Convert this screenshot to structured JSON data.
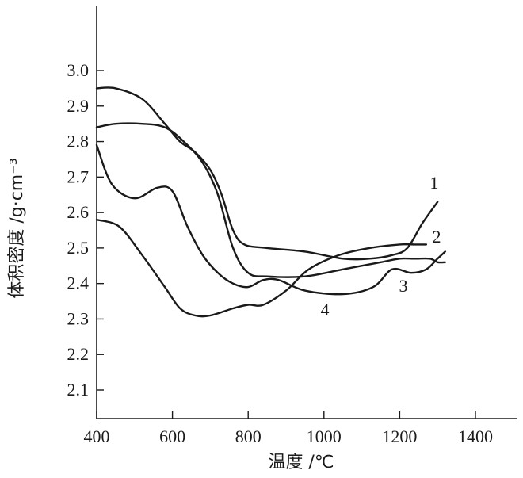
{
  "chart_data": {
    "type": "line",
    "title": "",
    "xlabel": "温度 /℃",
    "ylabel": "体积密度 /g·cm⁻³",
    "xlim": [
      400,
      1500
    ],
    "ylim": [
      2.0,
      3.2
    ],
    "xticks": [
      400,
      600,
      800,
      1000,
      1200,
      1400
    ],
    "xtick_labels": [
      "400",
      "600",
      "800",
      "1000",
      "1200",
      "1400"
    ],
    "yticks": [
      2.1,
      2.2,
      2.3,
      2.4,
      2.5,
      2.6,
      2.7,
      2.8,
      2.9,
      3.0
    ],
    "ytick_labels": [
      "2.1",
      "2.2",
      "2.3",
      "2.4",
      "2.5",
      "2.6",
      "2.7",
      "2.8",
      "2.9",
      "3.0"
    ],
    "grid": false,
    "series": [
      {
        "name": "1",
        "x": [
          400,
          450,
          520,
          580,
          620,
          660,
          700,
          730,
          760,
          790,
          850,
          950,
          1050,
          1120,
          1180,
          1220,
          1260,
          1300
        ],
        "y": [
          2.95,
          2.95,
          2.92,
          2.85,
          2.8,
          2.77,
          2.72,
          2.65,
          2.55,
          2.51,
          2.5,
          2.49,
          2.47,
          2.47,
          2.48,
          2.5,
          2.57,
          2.63
        ]
      },
      {
        "name": "2",
        "x": [
          400,
          450,
          520,
          580,
          630,
          680,
          720,
          760,
          800,
          850,
          950,
          1050,
          1150,
          1200,
          1240,
          1280,
          1300,
          1320
        ],
        "y": [
          2.84,
          2.85,
          2.85,
          2.84,
          2.8,
          2.74,
          2.65,
          2.5,
          2.43,
          2.42,
          2.42,
          2.44,
          2.46,
          2.47,
          2.47,
          2.47,
          2.46,
          2.46
        ]
      },
      {
        "name": "3",
        "x": [
          400,
          440,
          500,
          560,
          600,
          640,
          680,
          720,
          760,
          800,
          840,
          880,
          950,
          1050,
          1130,
          1180,
          1230,
          1270,
          1300,
          1320
        ],
        "y": [
          2.79,
          2.68,
          2.64,
          2.67,
          2.66,
          2.56,
          2.48,
          2.43,
          2.4,
          2.39,
          2.41,
          2.41,
          2.38,
          2.37,
          2.39,
          2.44,
          2.43,
          2.44,
          2.47,
          2.49
        ]
      },
      {
        "name": "4",
        "x": [
          400,
          460,
          520,
          580,
          620,
          660,
          700,
          760,
          800,
          840,
          900,
          960,
          1040,
          1120,
          1200,
          1240,
          1270
        ],
        "y": [
          2.58,
          2.56,
          2.48,
          2.39,
          2.33,
          2.31,
          2.31,
          2.33,
          2.34,
          2.34,
          2.38,
          2.44,
          2.48,
          2.5,
          2.51,
          2.51,
          2.51
        ]
      }
    ],
    "series_labels": [
      "1",
      "2",
      "3",
      "4"
    ]
  }
}
